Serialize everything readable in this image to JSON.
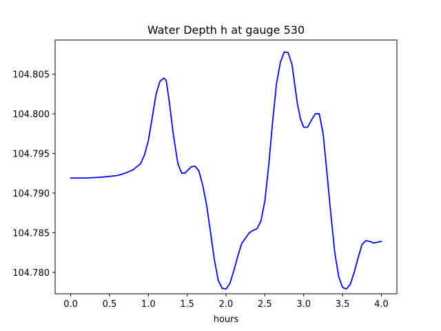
{
  "chart_data": {
    "type": "line",
    "title": "Water Depth h at gauge 530",
    "xlabel": "hours",
    "ylabel": "",
    "xlim": [
      -0.2,
      4.2
    ],
    "ylim": [
      104.7773,
      104.8093
    ],
    "xticks": [
      0.0,
      0.5,
      1.0,
      1.5,
      2.0,
      2.5,
      3.0,
      3.5,
      4.0
    ],
    "xtick_labels": [
      "0.0",
      "0.5",
      "1.0",
      "1.5",
      "2.0",
      "2.5",
      "3.0",
      "3.5",
      "4.0"
    ],
    "yticks": [
      104.78,
      104.785,
      104.79,
      104.795,
      104.8,
      104.805
    ],
    "ytick_labels": [
      "104.780",
      "104.785",
      "104.790",
      "104.795",
      "104.800",
      "104.805"
    ],
    "grid": false,
    "series": [
      {
        "color": "#0000ff",
        "x": [
          0.0,
          0.2,
          0.4,
          0.6,
          0.7,
          0.8,
          0.9,
          0.95,
          1.0,
          1.05,
          1.1,
          1.15,
          1.2,
          1.23,
          1.27,
          1.32,
          1.38,
          1.43,
          1.47,
          1.5,
          1.55,
          1.6,
          1.65,
          1.7,
          1.75,
          1.8,
          1.85,
          1.9,
          1.95,
          2.0,
          2.05,
          2.1,
          2.15,
          2.2,
          2.25,
          2.3,
          2.35,
          2.4,
          2.45,
          2.5,
          2.55,
          2.6,
          2.65,
          2.7,
          2.75,
          2.8,
          2.85,
          2.88,
          2.92,
          2.96,
          3.0,
          3.05,
          3.1,
          3.15,
          3.2,
          3.25,
          3.3,
          3.35,
          3.4,
          3.45,
          3.5,
          3.55,
          3.6,
          3.65,
          3.7,
          3.75,
          3.8,
          3.85,
          3.9,
          3.95,
          4.0
        ],
        "y": [
          104.7919,
          104.7919,
          104.792,
          104.7922,
          104.7925,
          104.7929,
          104.7937,
          104.7948,
          104.7966,
          104.7995,
          104.8025,
          104.8041,
          104.8045,
          104.8042,
          104.8015,
          104.7975,
          104.7937,
          104.7925,
          104.7925,
          104.7928,
          104.7933,
          104.7934,
          104.7928,
          104.791,
          104.7885,
          104.7851,
          104.7816,
          104.779,
          104.778,
          104.7779,
          104.7786,
          104.7802,
          104.782,
          104.7836,
          104.7843,
          104.785,
          104.7853,
          104.7855,
          104.7865,
          104.789,
          104.7935,
          104.799,
          104.8038,
          104.8065,
          104.8078,
          104.8077,
          104.8062,
          104.804,
          104.8012,
          104.7993,
          104.7983,
          104.7983,
          104.7992,
          104.8,
          104.8,
          104.7975,
          104.7925,
          104.7873,
          104.7825,
          104.7795,
          104.7781,
          104.7779,
          104.7785,
          104.78,
          104.7818,
          104.7835,
          104.784,
          104.7839,
          104.7837,
          104.7838,
          104.7839
        ]
      }
    ]
  }
}
